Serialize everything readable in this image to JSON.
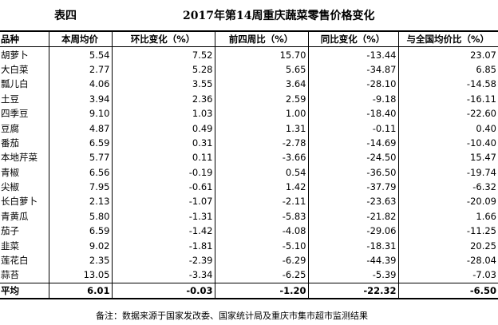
{
  "header": {
    "label": "表四",
    "title": "2017年第14周重庆蔬菜零售价格变化"
  },
  "table": {
    "columns": [
      "品种",
      "本周均价",
      "环比变化（%）",
      "前四周比（%）",
      "同比变化（%）",
      "与全国均价比（%）"
    ],
    "rows": [
      [
        "胡萝卜",
        "5.54",
        "7.52",
        "15.70",
        "-13.44",
        "23.07"
      ],
      [
        "大白菜",
        "2.77",
        "5.28",
        "5.65",
        "-34.87",
        "6.85"
      ],
      [
        "瓢儿白",
        "4.06",
        "3.55",
        "3.64",
        "-28.10",
        "-14.58"
      ],
      [
        "土豆",
        "3.94",
        "2.36",
        "2.59",
        "-9.18",
        "-16.11"
      ],
      [
        "四季豆",
        "9.10",
        "1.03",
        "1.00",
        "-18.40",
        "-22.60"
      ],
      [
        "豆腐",
        "4.87",
        "0.49",
        "1.31",
        "-0.11",
        "0.40"
      ],
      [
        "番茄",
        "6.59",
        "0.31",
        "-2.78",
        "-14.69",
        "-10.40"
      ],
      [
        "本地芹菜",
        "5.77",
        "0.11",
        "-3.66",
        "-24.50",
        "15.47"
      ],
      [
        "青椒",
        "6.56",
        "-0.19",
        "0.54",
        "-36.50",
        "-19.74"
      ],
      [
        "尖椒",
        "7.95",
        "-0.61",
        "1.42",
        "-37.79",
        "-6.32"
      ],
      [
        "长白萝卜",
        "2.13",
        "-1.07",
        "-2.11",
        "-23.63",
        "-20.09"
      ],
      [
        "青黄瓜",
        "5.80",
        "-1.31",
        "-5.83",
        "-21.82",
        "1.66"
      ],
      [
        "茄子",
        "6.59",
        "-1.42",
        "-4.08",
        "-29.06",
        "-11.25"
      ],
      [
        "韭菜",
        "9.02",
        "-1.81",
        "-5.10",
        "-18.31",
        "20.25"
      ],
      [
        "莲花白",
        "2.35",
        "-2.39",
        "-6.29",
        "-44.39",
        "-28.04"
      ],
      [
        "蒜苔",
        "13.05",
        "-3.34",
        "-6.25",
        "-5.39",
        "-7.03"
      ]
    ],
    "average": [
      "平均",
      "6.01",
      "-0.03",
      "-1.20",
      "-22.32",
      "-6.50"
    ]
  },
  "footnote": "备注：数据来源于国家发改委、国家统计局及重庆市集市超市监测结果"
}
